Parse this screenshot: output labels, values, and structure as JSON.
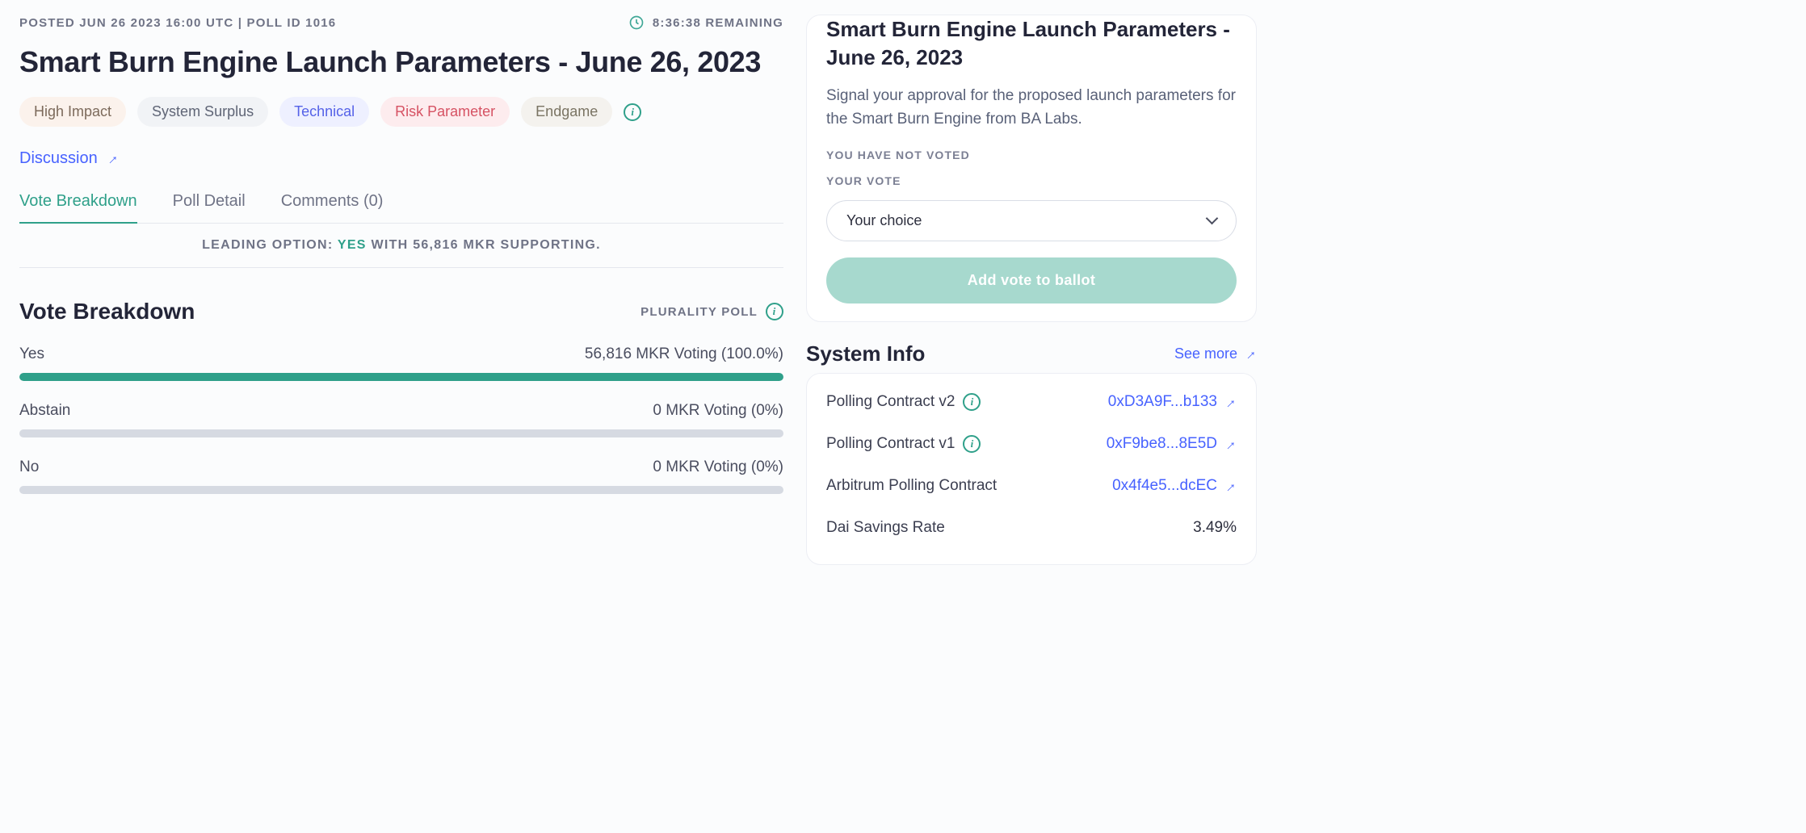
{
  "meta": {
    "posted": "POSTED JUN 26 2023 16:00 UTC | POLL ID 1016",
    "remaining": "8:36:38 REMAINING"
  },
  "title": "Smart Burn Engine Launch Parameters - June 26, 2023",
  "tags": [
    {
      "label": "High Impact",
      "bg": "#fbf2ec",
      "fg": "#7c6a5b"
    },
    {
      "label": "System Surplus",
      "bg": "#f1f3f6",
      "fg": "#5f6576"
    },
    {
      "label": "Technical",
      "bg": "#eef0ff",
      "fg": "#5562e8"
    },
    {
      "label": "Risk Parameter",
      "bg": "#fdecee",
      "fg": "#d65263"
    },
    {
      "label": "Endgame",
      "bg": "#f4f2ee",
      "fg": "#7a7463"
    }
  ],
  "discussion": {
    "label": "Discussion"
  },
  "tabs": {
    "items": [
      {
        "label": "Vote Breakdown",
        "active": true
      },
      {
        "label": "Poll Detail",
        "active": false
      },
      {
        "label": "Comments (0)",
        "active": false
      }
    ]
  },
  "leading": {
    "prefix": "LEADING OPTION:",
    "option": "YES",
    "suffix": "WITH 56,816 MKR SUPPORTING."
  },
  "breakdown": {
    "heading": "Vote Breakdown",
    "pollType": "PLURALITY POLL",
    "options": [
      {
        "label": "Yes",
        "amount": "56,816 MKR Voting (100.0%)",
        "pct": 100,
        "color": "#2fa08a"
      },
      {
        "label": "Abstain",
        "amount": "0 MKR Voting (0%)",
        "pct": 0,
        "color": "#d6dae2"
      },
      {
        "label": "No",
        "amount": "0 MKR Voting (0%)",
        "pct": 0,
        "color": "#d6dae2"
      }
    ]
  },
  "side": {
    "title": "Smart Burn Engine Launch Parameters - June 26, 2023",
    "desc": "Signal your approval for the proposed launch parameters for the Smart Burn Engine from BA Labs.",
    "status": "YOU HAVE NOT VOTED",
    "yourVote": "YOUR VOTE",
    "selectPlaceholder": "Your choice",
    "button": "Add vote to ballot"
  },
  "systemInfo": {
    "heading": "System Info",
    "seeMore": "See more",
    "rows": [
      {
        "k": "Polling Contract v2",
        "v": "0xD3A9F...b133",
        "link": true,
        "info": true
      },
      {
        "k": "Polling Contract v1",
        "v": "0xF9be8...8E5D",
        "link": true,
        "info": true
      },
      {
        "k": "Arbitrum Polling Contract",
        "v": "0x4f4e5...dcEC",
        "link": true,
        "info": false
      },
      {
        "k": "Dai Savings Rate",
        "v": "3.49%",
        "link": false,
        "info": false
      }
    ]
  }
}
